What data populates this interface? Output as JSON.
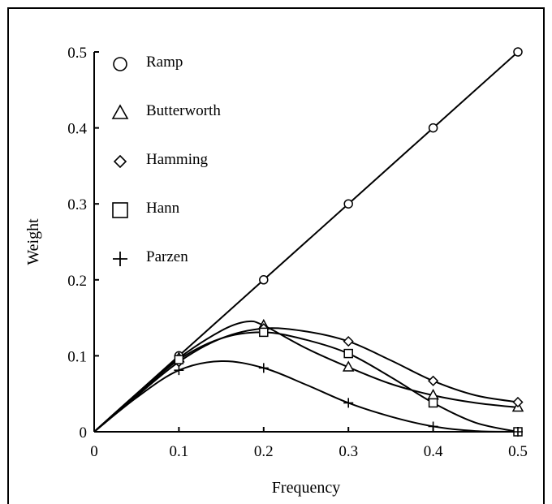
{
  "chart_data": {
    "type": "line",
    "xlabel": "Frequency",
    "ylabel": "Weight",
    "xlim": [
      0,
      0.5
    ],
    "ylim": [
      0,
      0.5
    ],
    "x_ticks": [
      "0",
      "0.1",
      "0.2",
      "0.3",
      "0.4",
      "0.5"
    ],
    "y_ticks": [
      "0",
      "0.1",
      "0.2",
      "0.3",
      "0.4",
      "0.5"
    ],
    "grid": false,
    "legend_position": "top-left",
    "series": [
      {
        "name": "Ramp",
        "marker": "circle",
        "x": [
          0.1,
          0.2,
          0.3,
          0.4,
          0.5
        ],
        "y": [
          0.1,
          0.2,
          0.3,
          0.4,
          0.5
        ],
        "curve": [
          [
            0,
            0
          ],
          [
            0.1,
            0.1
          ],
          [
            0.2,
            0.2
          ],
          [
            0.3,
            0.3
          ],
          [
            0.4,
            0.4
          ],
          [
            0.5,
            0.5
          ]
        ]
      },
      {
        "name": "Butterworth",
        "marker": "triangle",
        "x": [
          0.1,
          0.2,
          0.3,
          0.4,
          0.5
        ],
        "y": [
          0.097,
          0.14,
          0.085,
          0.048,
          0.032
        ],
        "curve": [
          [
            0,
            0
          ],
          [
            0.05,
            0.05
          ],
          [
            0.1,
            0.097
          ],
          [
            0.15,
            0.133
          ],
          [
            0.18,
            0.145
          ],
          [
            0.2,
            0.14
          ],
          [
            0.25,
            0.11
          ],
          [
            0.3,
            0.085
          ],
          [
            0.35,
            0.063
          ],
          [
            0.4,
            0.048
          ],
          [
            0.45,
            0.038
          ],
          [
            0.5,
            0.032
          ]
        ]
      },
      {
        "name": "Hamming",
        "marker": "diamond",
        "x": [
          0.1,
          0.2,
          0.3,
          0.4,
          0.5
        ],
        "y": [
          0.092,
          0.136,
          0.119,
          0.067,
          0.039
        ],
        "curve": [
          [
            0,
            0
          ],
          [
            0.05,
            0.047
          ],
          [
            0.1,
            0.092
          ],
          [
            0.15,
            0.123
          ],
          [
            0.2,
            0.136
          ],
          [
            0.25,
            0.132
          ],
          [
            0.3,
            0.119
          ],
          [
            0.35,
            0.094
          ],
          [
            0.4,
            0.067
          ],
          [
            0.45,
            0.048
          ],
          [
            0.5,
            0.039
          ]
        ]
      },
      {
        "name": "Hann",
        "marker": "square",
        "x": [
          0.1,
          0.2,
          0.3,
          0.4,
          0.5
        ],
        "y": [
          0.095,
          0.131,
          0.103,
          0.038,
          0.0
        ],
        "curve": [
          [
            0,
            0
          ],
          [
            0.05,
            0.048
          ],
          [
            0.1,
            0.095
          ],
          [
            0.15,
            0.123
          ],
          [
            0.2,
            0.131
          ],
          [
            0.25,
            0.121
          ],
          [
            0.3,
            0.103
          ],
          [
            0.35,
            0.072
          ],
          [
            0.4,
            0.038
          ],
          [
            0.45,
            0.012
          ],
          [
            0.5,
            0.0
          ]
        ]
      },
      {
        "name": "Parzen",
        "marker": "plus",
        "x": [
          0.1,
          0.2,
          0.3,
          0.4,
          0.5
        ],
        "y": [
          0.081,
          0.084,
          0.038,
          0.007,
          0.0
        ],
        "curve": [
          [
            0,
            0
          ],
          [
            0.05,
            0.045
          ],
          [
            0.1,
            0.081
          ],
          [
            0.15,
            0.093
          ],
          [
            0.2,
            0.084
          ],
          [
            0.25,
            0.062
          ],
          [
            0.3,
            0.038
          ],
          [
            0.35,
            0.02
          ],
          [
            0.4,
            0.007
          ],
          [
            0.45,
            0.001
          ],
          [
            0.5,
            0.0
          ]
        ]
      }
    ]
  }
}
